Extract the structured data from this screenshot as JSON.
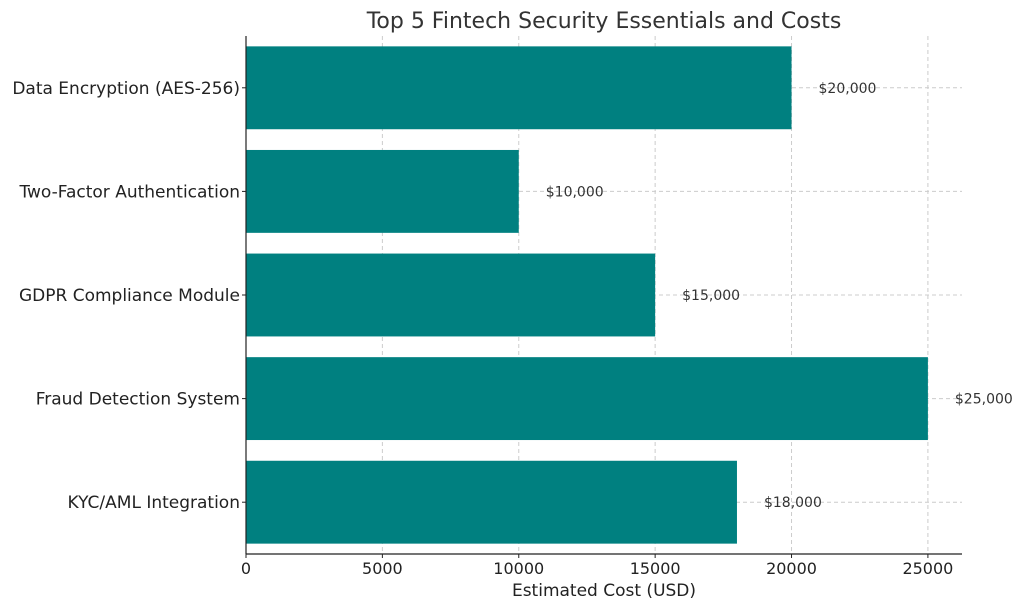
{
  "chart_data": {
    "type": "bar",
    "orientation": "horizontal",
    "title": "Top 5 Fintech Security Essentials and Costs",
    "xlabel": "Estimated Cost (USD)",
    "ylabel": "",
    "categories": [
      "Data Encryption (AES-256)",
      "Two-Factor Authentication",
      "GDPR Compliance Module",
      "Fraud Detection System",
      "KYC/AML Integration"
    ],
    "values": [
      20000,
      10000,
      15000,
      25000,
      18000
    ],
    "data_labels": [
      "$20,000",
      "$10,000",
      "$15,000",
      "$25,000",
      "$18,000"
    ],
    "xlim": [
      0,
      26250
    ],
    "xticks": [
      0,
      5000,
      10000,
      15000,
      20000,
      25000
    ],
    "xtick_labels": [
      "0",
      "5000",
      "10000",
      "15000",
      "20000",
      "25000"
    ],
    "bar_color": "#008080",
    "grid": true,
    "legend": "none"
  }
}
